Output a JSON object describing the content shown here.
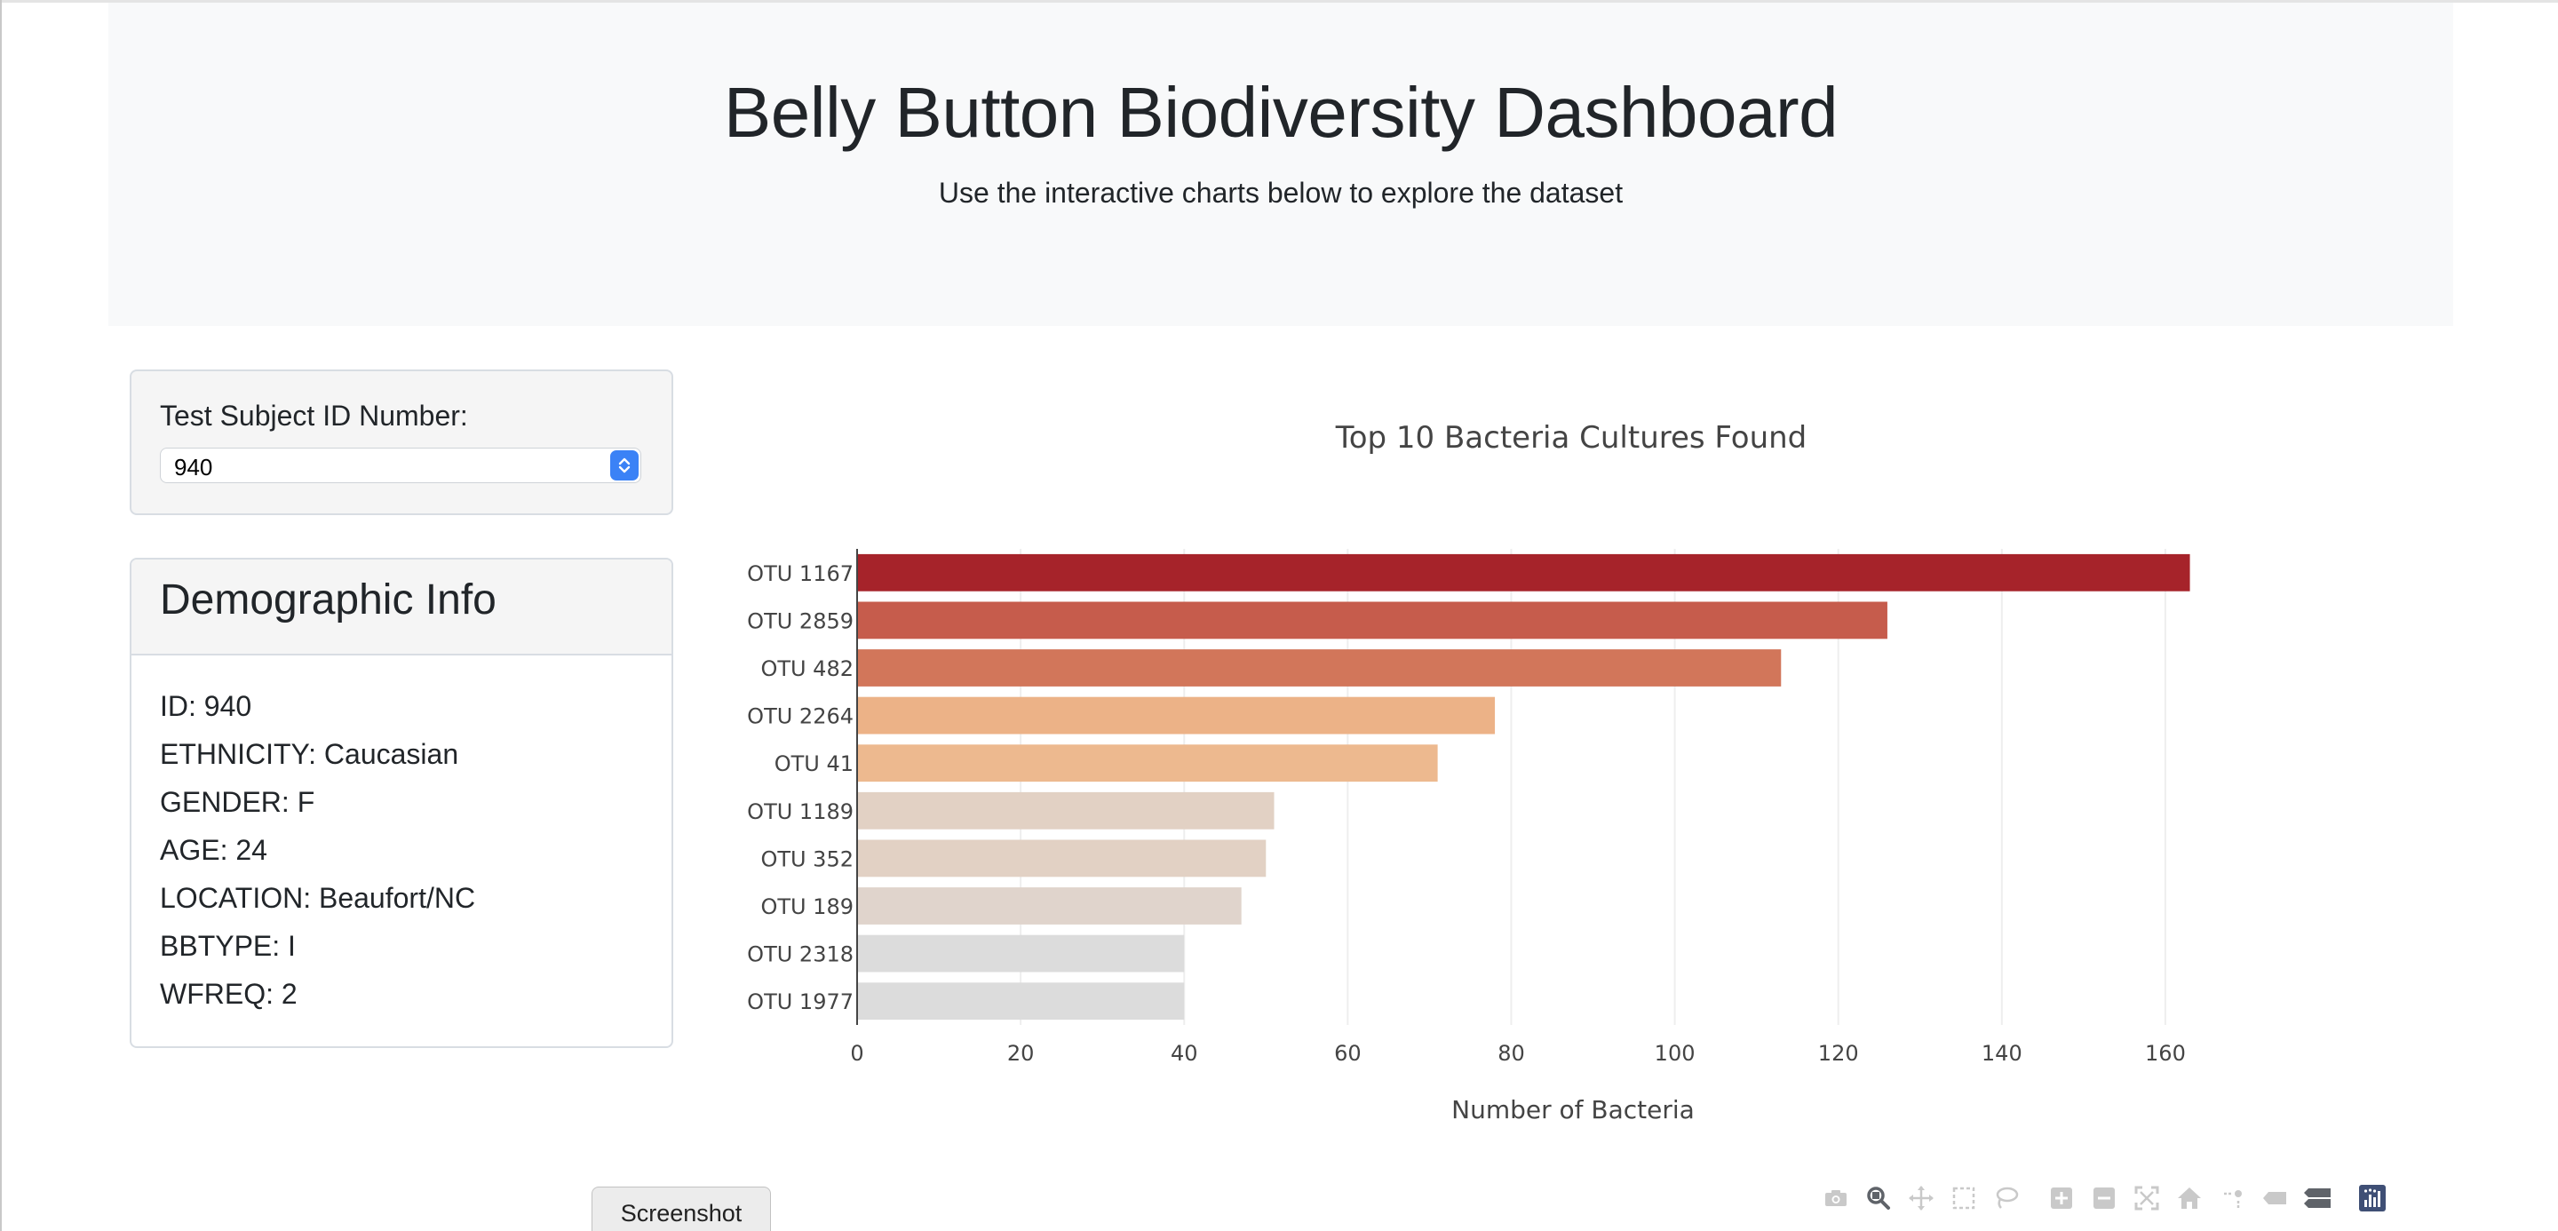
{
  "header": {
    "title": "Belly Button Biodiversity Dashboard",
    "subtitle": "Use the interactive charts below to explore the dataset"
  },
  "selector": {
    "label": "Test Subject ID Number:",
    "value": "940"
  },
  "demographics": {
    "title": "Demographic Info",
    "rows": [
      "ID: 940",
      "ETHNICITY: Caucasian",
      "GENDER: F",
      "AGE: 24",
      "LOCATION: Beaufort/NC",
      "BBTYPE: I",
      "WFREQ: 2"
    ]
  },
  "chart_data": {
    "type": "bar",
    "orientation": "horizontal",
    "title": "Top 10 Bacteria Cultures Found",
    "xlabel": "Number of Bacteria",
    "ylabel": "",
    "categories": [
      "OTU 1167",
      "OTU 2859",
      "OTU 482",
      "OTU 2264",
      "OTU 41",
      "OTU 1189",
      "OTU 352",
      "OTU 189",
      "OTU 2318",
      "OTU 1977"
    ],
    "values": [
      163,
      126,
      113,
      78,
      71,
      51,
      50,
      47,
      40,
      40
    ],
    "colors": [
      "#a6232a",
      "#c65c4c",
      "#d2765a",
      "#ecb287",
      "#edb98f",
      "#e2d1c4",
      "#e2d1c4",
      "#e0d4cc",
      "#dcdcdc",
      "#dcdcdc"
    ],
    "xlim": [
      0,
      170
    ],
    "xticks": [
      0,
      20,
      40,
      60,
      80,
      100,
      120,
      140,
      160
    ],
    "grid": true
  },
  "footer": {
    "screenshot_label": "Screenshot"
  },
  "modebar": {
    "icons": [
      "camera-icon",
      "zoom-icon",
      "pan-icon",
      "box-select-icon",
      "lasso-icon",
      "zoom-in-icon",
      "zoom-out-icon",
      "autoscale-icon",
      "reset-axes-icon",
      "spike-lines-icon",
      "hover-closest-icon",
      "hover-compare-icon",
      "plotly-logo-icon"
    ]
  }
}
